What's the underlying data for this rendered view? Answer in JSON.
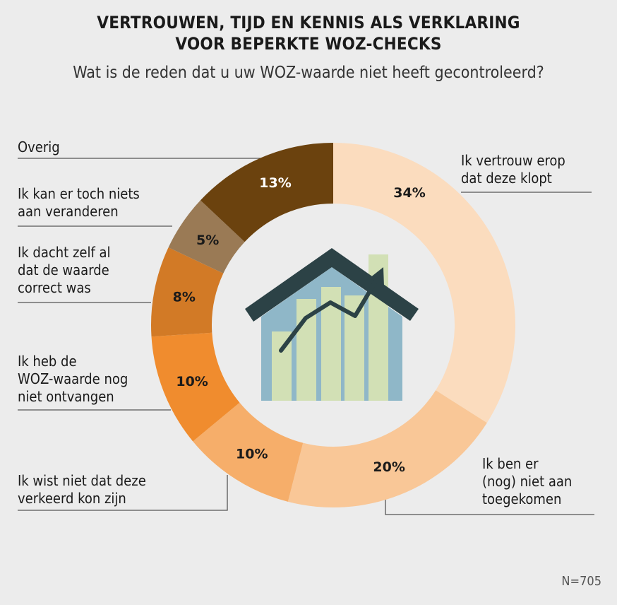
{
  "title_line1": "VERTROUWEN, TIJD EN KENNIS ALS VERKLARING",
  "title_line2": "VOOR BEPERKTE WOZ-CHECKS",
  "subtitle": "Wat is de reden dat u uw WOZ-waarde niet heeft gecontroleerd?",
  "note": "N=705",
  "chart_data": {
    "type": "pie",
    "donut": true,
    "title": "VERTROUWEN, TIJD EN KENNIS ALS VERKLARING VOOR BEPERKTE WOZ-CHECKS",
    "subtitle": "Wat is de reden dat u uw WOZ-waarde niet heeft gecontroleerd?",
    "unit": "%",
    "start": "top",
    "direction": "clockwise",
    "slices": [
      {
        "label": "Ik vertrouw erop\ndat deze klopt",
        "value": 34,
        "text": "34%",
        "color": "#fbdcbe",
        "text_color": "#1a1a1a"
      },
      {
        "label": "Ik ben er\n(nog) niet aan\ntoegekomen",
        "value": 20,
        "text": "20%",
        "color": "#f9c797",
        "text_color": "#1a1a1a"
      },
      {
        "label": "Ik wist niet dat deze\nverkeerd kon zijn",
        "value": 10,
        "text": "10%",
        "color": "#f6ae6a",
        "text_color": "#1a1a1a"
      },
      {
        "label": "Ik heb de\nWOZ-waarde nog\nniet ontvangen",
        "value": 10,
        "text": "10%",
        "color": "#f08c2e",
        "text_color": "#1a1a1a"
      },
      {
        "label": "Ik dacht zelf al\ndat de waarde\ncorrect was",
        "value": 8,
        "text": "8%",
        "color": "#d27a26",
        "text_color": "#1a1a1a"
      },
      {
        "label": "Ik kan er toch niets\naan veranderen",
        "value": 5,
        "text": "5%",
        "color": "#9a7a55",
        "text_color": "#1a1a1a"
      },
      {
        "label": "Overig",
        "value": 13,
        "text": "13%",
        "color": "#6b420e",
        "text_color": "#ffffff"
      }
    ],
    "center_icon": "house-with-rising-bar-chart-icon"
  }
}
